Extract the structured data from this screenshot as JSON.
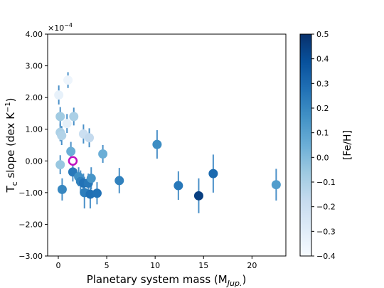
{
  "chart_data": {
    "type": "scatter",
    "xlabel_main": "Planetary system mass (M",
    "xlabel_sub": "Jup.",
    "xlabel_end": ")",
    "ylabel_main": "T",
    "ylabel_sub": "c",
    "ylabel_rest": " slope (dex K",
    "ylabel_sup": "−1",
    "ylabel_end": ")",
    "y_multiplier": "×10",
    "y_multiplier_exp": "−4",
    "colorbar_label": "[Fe/H]",
    "xlim": [
      -1.1,
      23.5
    ],
    "ylim": [
      -3.0,
      4.0
    ],
    "xticks": [
      0,
      5,
      10,
      15,
      20
    ],
    "xtick_labels": [
      "0",
      "5",
      "10",
      "15",
      "20"
    ],
    "yticks": [
      -3,
      -2,
      -1,
      0,
      1,
      2,
      3,
      4
    ],
    "ytick_labels": [
      "−3.00",
      "−2.00",
      "−1.00",
      "0.00",
      "1.00",
      "2.00",
      "3.00",
      "4.00"
    ],
    "clim": [
      -0.4,
      0.5
    ],
    "cbar_ticks": [
      -0.4,
      -0.3,
      -0.2,
      -0.1,
      0.0,
      0.1,
      0.2,
      0.3,
      0.4,
      0.5
    ],
    "cbar_tick_labels": [
      "−0.4",
      "−0.3",
      "−0.2",
      "−0.1",
      "0.0",
      "0.1",
      "0.2",
      "0.3",
      "0.4",
      "0.5"
    ],
    "colormap": "Blues",
    "errorbar_color": "#4a90c8",
    "highlight_color": "#c010c0",
    "points": [
      {
        "x": 0.05,
        "y": 2.08,
        "err": 0.3,
        "feh": -0.33
      },
      {
        "x": 1.0,
        "y": 2.55,
        "err": 0.25,
        "feh": -0.36
      },
      {
        "x": 0.2,
        "y": 1.4,
        "err": 0.3,
        "feh": -0.07
      },
      {
        "x": 1.6,
        "y": 1.4,
        "err": 0.28,
        "feh": -0.1
      },
      {
        "x": 0.9,
        "y": 1.18,
        "err": 0.3,
        "feh": -0.32
      },
      {
        "x": 0.2,
        "y": 0.9,
        "err": 0.28,
        "feh": -0.1
      },
      {
        "x": 0.35,
        "y": 0.8,
        "err": 0.3,
        "feh": -0.12
      },
      {
        "x": 2.6,
        "y": 0.85,
        "err": 0.3,
        "feh": -0.2
      },
      {
        "x": 3.2,
        "y": 0.73,
        "err": 0.3,
        "feh": -0.17
      },
      {
        "x": 1.3,
        "y": 0.3,
        "err": 0.3,
        "feh": 0.05
      },
      {
        "x": 4.6,
        "y": 0.22,
        "err": 0.28,
        "feh": 0.05
      },
      {
        "x": 10.2,
        "y": 0.52,
        "err": 0.45,
        "feh": 0.18
      },
      {
        "x": 0.2,
        "y": -0.12,
        "err": 0.3,
        "feh": -0.05
      },
      {
        "x": 1.5,
        "y": -0.35,
        "err": 0.3,
        "feh": 0.25
      },
      {
        "x": 0.4,
        "y": -0.9,
        "err": 0.35,
        "feh": 0.2
      },
      {
        "x": 2.1,
        "y": -0.5,
        "err": 0.3,
        "feh": 0.17
      },
      {
        "x": 2.3,
        "y": -0.65,
        "err": 0.35,
        "feh": 0.22
      },
      {
        "x": 2.6,
        "y": -0.7,
        "err": 0.3,
        "feh": 0.27
      },
      {
        "x": 3.1,
        "y": -0.7,
        "err": 0.3,
        "feh": 0.25
      },
      {
        "x": 3.4,
        "y": -0.55,
        "err": 0.35,
        "feh": 0.15
      },
      {
        "x": 2.7,
        "y": -1.0,
        "err": 0.5,
        "feh": 0.23
      },
      {
        "x": 3.3,
        "y": -1.05,
        "err": 0.45,
        "feh": 0.28
      },
      {
        "x": 4.0,
        "y": -1.02,
        "err": 0.35,
        "feh": 0.27
      },
      {
        "x": 6.3,
        "y": -0.62,
        "err": 0.4,
        "feh": 0.22
      },
      {
        "x": 12.4,
        "y": -0.78,
        "err": 0.45,
        "feh": 0.25
      },
      {
        "x": 14.5,
        "y": -1.1,
        "err": 0.55,
        "feh": 0.45
      },
      {
        "x": 16.0,
        "y": -0.4,
        "err": 0.6,
        "feh": 0.3
      },
      {
        "x": 22.5,
        "y": -0.75,
        "err": 0.5,
        "feh": 0.12
      }
    ],
    "highlight_point": {
      "x": 1.5,
      "y": 0.0
    }
  }
}
